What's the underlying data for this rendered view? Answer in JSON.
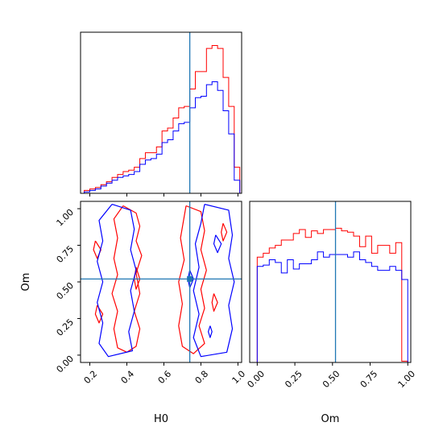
{
  "chart_data": [
    {
      "type": "histogram",
      "parameter": "H0",
      "xlim": [
        0.15,
        1.02
      ],
      "bin_edges": [
        0.17,
        0.2,
        0.23,
        0.26,
        0.29,
        0.32,
        0.35,
        0.38,
        0.41,
        0.44,
        0.47,
        0.5,
        0.53,
        0.56,
        0.59,
        0.62,
        0.65,
        0.68,
        0.71,
        0.74,
        0.77,
        0.8,
        0.83,
        0.86,
        0.89,
        0.92,
        0.95,
        0.98,
        1.01
      ],
      "series": [
        {
          "color": "#ff0000",
          "values": [
            0.4,
            0.6,
            0.8,
            1.2,
            1.6,
            2.2,
            2.6,
            3.0,
            3.2,
            3.6,
            4.8,
            5.6,
            5.6,
            6.4,
            8.6,
            9.0,
            10.4,
            11.8,
            12.0,
            14.4,
            16.8,
            16.8,
            20.0,
            20.4,
            20.0,
            16.0,
            12.0,
            3.6
          ]
        },
        {
          "color": "#0000ff",
          "values": [
            0.2,
            0.4,
            0.6,
            1.0,
            1.4,
            1.8,
            2.2,
            2.4,
            2.6,
            3.0,
            4.0,
            4.6,
            4.8,
            5.4,
            7.0,
            7.4,
            8.6,
            9.6,
            9.8,
            11.8,
            13.2,
            13.4,
            15.0,
            15.4,
            14.2,
            11.4,
            8.2,
            1.8
          ]
        }
      ],
      "truth_line": 0.74,
      "truth_line_color": "#1f77b4"
    },
    {
      "type": "contour",
      "x_parameter": "H0",
      "y_parameter": "Om",
      "xlim": [
        0.15,
        1.02
      ],
      "ylim": [
        -0.05,
        1.05
      ],
      "x_ticks": [
        "0.2",
        "0.4",
        "0.6",
        "0.8",
        "1.0"
      ],
      "y_ticks": [
        "0.00",
        "0.25",
        "0.50",
        "0.75",
        "1.00"
      ],
      "xlabel": "H0",
      "ylabel": "Om",
      "series": [
        {
          "color": "#ff0000",
          "contours": [
            [
              [
                0.38,
                1.02
              ],
              [
                0.45,
                0.97
              ],
              [
                0.47,
                0.88
              ],
              [
                0.45,
                0.78
              ],
              [
                0.48,
                0.68
              ],
              [
                0.45,
                0.56
              ],
              [
                0.47,
                0.42
              ],
              [
                0.44,
                0.3
              ],
              [
                0.47,
                0.18
              ],
              [
                0.45,
                0.06
              ],
              [
                0.4,
                0.02
              ],
              [
                0.35,
                0.05
              ],
              [
                0.33,
                0.18
              ],
              [
                0.35,
                0.3
              ],
              [
                0.32,
                0.42
              ],
              [
                0.35,
                0.55
              ],
              [
                0.33,
                0.66
              ],
              [
                0.35,
                0.8
              ],
              [
                0.33,
                0.93
              ],
              [
                0.38,
                1.02
              ]
            ],
            [
              [
                0.72,
                1.02
              ],
              [
                0.8,
                0.98
              ],
              [
                0.82,
                0.85
              ],
              [
                0.8,
                0.72
              ],
              [
                0.83,
                0.58
              ],
              [
                0.8,
                0.45
              ],
              [
                0.82,
                0.32
              ],
              [
                0.79,
                0.2
              ],
              [
                0.82,
                0.08
              ],
              [
                0.76,
                0.01
              ],
              [
                0.7,
                0.06
              ],
              [
                0.68,
                0.2
              ],
              [
                0.7,
                0.35
              ],
              [
                0.68,
                0.5
              ],
              [
                0.71,
                0.65
              ],
              [
                0.69,
                0.8
              ],
              [
                0.72,
                1.02
              ]
            ],
            [
              [
                0.23,
                0.78
              ],
              [
                0.26,
                0.72
              ],
              [
                0.24,
                0.66
              ],
              [
                0.22,
                0.72
              ],
              [
                0.23,
                0.78
              ]
            ],
            [
              [
                0.24,
                0.34
              ],
              [
                0.27,
                0.28
              ],
              [
                0.25,
                0.22
              ],
              [
                0.23,
                0.28
              ],
              [
                0.24,
                0.34
              ]
            ],
            [
              [
                0.45,
                0.6
              ],
              [
                0.47,
                0.52
              ],
              [
                0.45,
                0.45
              ],
              [
                0.44,
                0.52
              ],
              [
                0.45,
                0.6
              ]
            ],
            [
              [
                0.87,
                0.42
              ],
              [
                0.89,
                0.36
              ],
              [
                0.87,
                0.3
              ],
              [
                0.86,
                0.36
              ],
              [
                0.87,
                0.42
              ]
            ],
            [
              [
                0.92,
                0.9
              ],
              [
                0.94,
                0.84
              ],
              [
                0.92,
                0.78
              ],
              [
                0.91,
                0.84
              ],
              [
                0.92,
                0.9
              ]
            ]
          ]
        },
        {
          "color": "#0000ff",
          "contours": [
            [
              [
                0.32,
                1.03
              ],
              [
                0.42,
                0.99
              ],
              [
                0.44,
                0.86
              ],
              [
                0.42,
                0.72
              ],
              [
                0.45,
                0.58
              ],
              [
                0.42,
                0.44
              ],
              [
                0.44,
                0.3
              ],
              [
                0.41,
                0.16
              ],
              [
                0.43,
                0.03
              ],
              [
                0.3,
                -0.01
              ],
              [
                0.25,
                0.08
              ],
              [
                0.27,
                0.22
              ],
              [
                0.24,
                0.36
              ],
              [
                0.27,
                0.5
              ],
              [
                0.24,
                0.64
              ],
              [
                0.27,
                0.78
              ],
              [
                0.25,
                0.92
              ],
              [
                0.32,
                1.03
              ]
            ],
            [
              [
                0.82,
                1.03
              ],
              [
                0.95,
                0.99
              ],
              [
                0.97,
                0.82
              ],
              [
                0.95,
                0.66
              ],
              [
                0.98,
                0.5
              ],
              [
                0.95,
                0.34
              ],
              [
                0.97,
                0.18
              ],
              [
                0.94,
                0.02
              ],
              [
                0.8,
                -0.01
              ],
              [
                0.76,
                0.12
              ],
              [
                0.79,
                0.28
              ],
              [
                0.76,
                0.44
              ],
              [
                0.79,
                0.6
              ],
              [
                0.77,
                0.76
              ],
              [
                0.8,
                0.9
              ],
              [
                0.82,
                1.03
              ]
            ],
            [
              [
                0.88,
                0.82
              ],
              [
                0.91,
                0.76
              ],
              [
                0.89,
                0.7
              ],
              [
                0.87,
                0.76
              ],
              [
                0.88,
                0.82
              ]
            ],
            [
              [
                0.74,
                0.58
              ],
              [
                0.76,
                0.52
              ],
              [
                0.74,
                0.46
              ],
              [
                0.73,
                0.52
              ],
              [
                0.74,
                0.58
              ]
            ],
            [
              [
                0.85,
                0.2
              ],
              [
                0.86,
                0.16
              ],
              [
                0.85,
                0.12
              ],
              [
                0.84,
                0.16
              ],
              [
                0.85,
                0.2
              ]
            ]
          ]
        }
      ],
      "truth_point": [
        0.74,
        0.52
      ],
      "truth_color": "#1f77b4"
    },
    {
      "type": "histogram",
      "parameter": "Om",
      "xlabel": "Om",
      "xlim": [
        -0.05,
        1.02
      ],
      "x_ticks": [
        "0.00",
        "0.25",
        "0.50",
        "0.75",
        "1.00"
      ],
      "bin_edges": [
        0.0,
        0.04,
        0.08,
        0.12,
        0.16,
        0.2,
        0.24,
        0.28,
        0.32,
        0.36,
        0.4,
        0.44,
        0.48,
        0.52,
        0.56,
        0.6,
        0.64,
        0.68,
        0.72,
        0.76,
        0.8,
        0.84,
        0.88,
        0.92,
        0.96,
        1.0
      ],
      "series": [
        {
          "color": "#ff0000",
          "values": [
            16.0,
            16.6,
            17.4,
            17.8,
            18.6,
            18.6,
            19.6,
            20.2,
            19.0,
            20.0,
            19.6,
            20.2,
            20.2,
            20.4,
            20.0,
            19.8,
            19.2,
            17.6,
            19.2,
            16.6,
            17.8,
            17.8,
            16.6,
            18.2,
            0.2
          ]
        },
        {
          "color": "#0000ff",
          "values": [
            14.6,
            14.8,
            15.6,
            15.2,
            13.6,
            15.6,
            14.2,
            15.0,
            15.0,
            15.6,
            16.8,
            16.0,
            16.4,
            16.4,
            16.4,
            16.0,
            16.8,
            15.6,
            15.2,
            14.6,
            14.0,
            14.0,
            14.6,
            14.0,
            12.6
          ]
        }
      ],
      "truth_line": 0.52,
      "truth_line_color": "#1f77b4"
    }
  ]
}
